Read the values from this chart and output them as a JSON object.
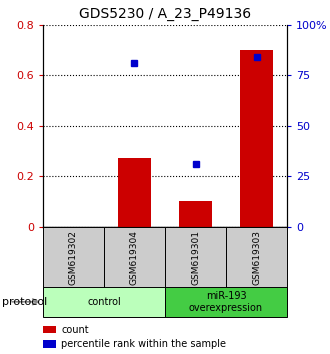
{
  "title": "GDS5230 / A_23_P49136",
  "samples": [
    "GSM619302",
    "GSM619304",
    "GSM619301",
    "GSM619303"
  ],
  "bar_values": [
    0.0,
    0.27,
    0.1,
    0.7
  ],
  "percentile_values": [
    null,
    81,
    31,
    84
  ],
  "bar_color": "#cc0000",
  "dot_color": "#0000cc",
  "ylim_left": [
    0,
    0.8
  ],
  "ylim_right": [
    0,
    100
  ],
  "yticks_left": [
    0,
    0.2,
    0.4,
    0.6,
    0.8
  ],
  "yticks_right": [
    0,
    25,
    50,
    75,
    100
  ],
  "yticklabels_left": [
    "0",
    "0.2",
    "0.4",
    "0.6",
    "0.8"
  ],
  "yticklabels_right": [
    "0",
    "25",
    "50",
    "75",
    "100%"
  ],
  "groups": [
    {
      "label": "control",
      "indices": [
        0,
        1
      ],
      "color": "#bbffbb"
    },
    {
      "label": "miR-193\noverexpression",
      "indices": [
        2,
        3
      ],
      "color": "#44cc44"
    }
  ],
  "protocol_label": "protocol",
  "legend_items": [
    {
      "label": "count",
      "color": "#cc0000"
    },
    {
      "label": "percentile rank within the sample",
      "color": "#0000cc"
    }
  ],
  "sample_box_color": "#cccccc",
  "background_color": "#ffffff",
  "title_fontsize": 10,
  "tick_fontsize": 8,
  "legend_fontsize": 7
}
